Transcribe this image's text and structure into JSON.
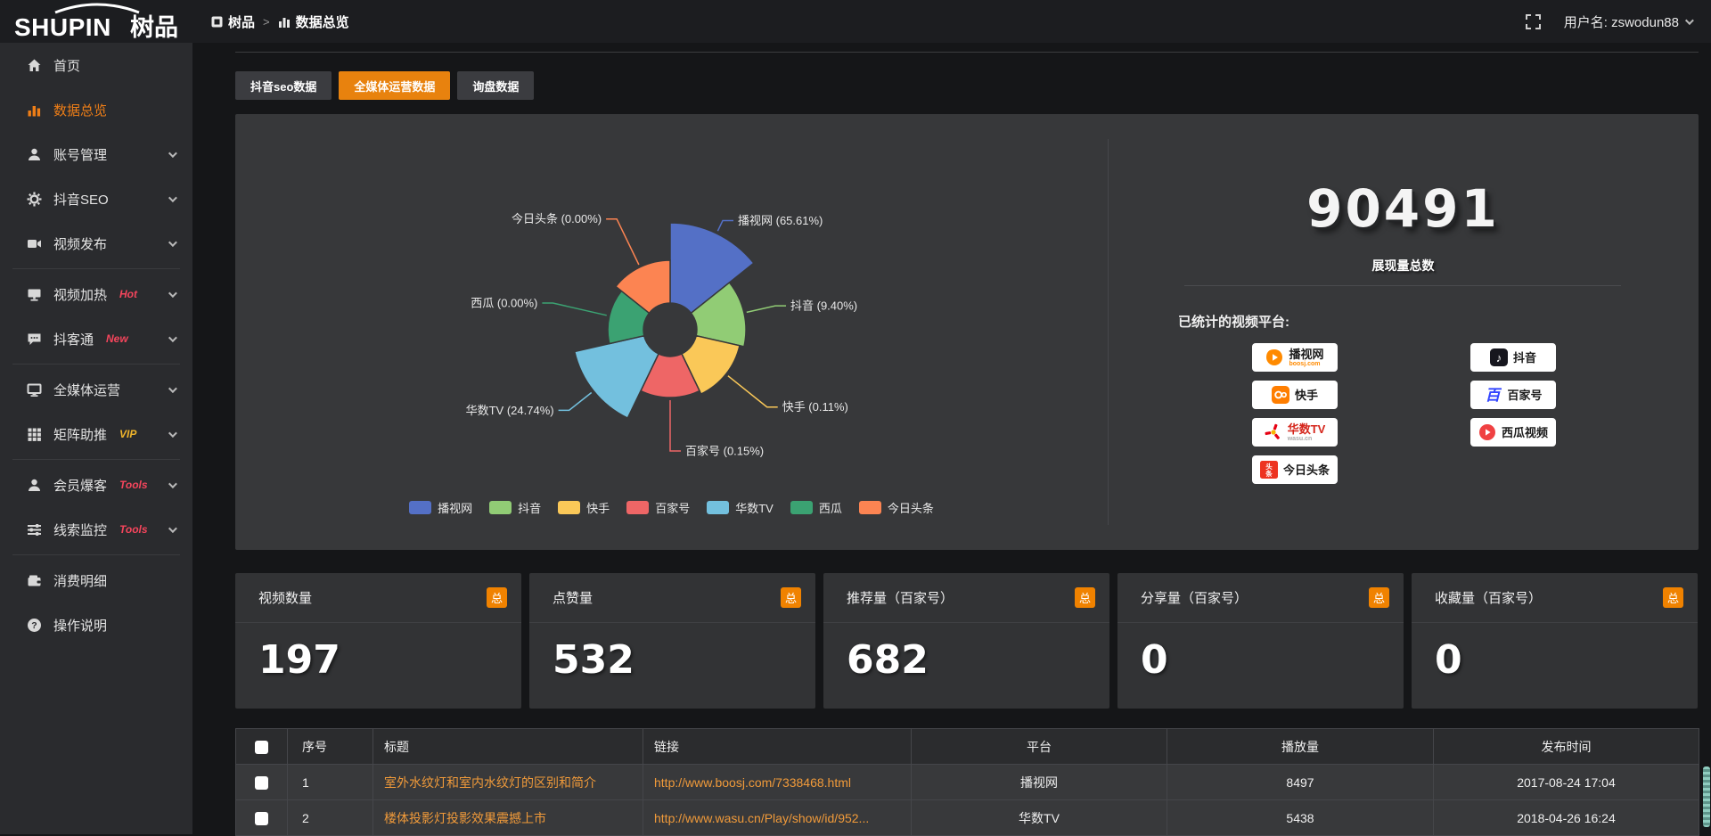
{
  "topbar": {
    "logo_en": "SHUPIN",
    "logo_cn": "树品",
    "breadcrumb": [
      {
        "label": "树品"
      },
      {
        "label": "数据总览"
      }
    ],
    "breadcrumb_sep": ">",
    "username": "用户名: zswodun88"
  },
  "sidebar": {
    "items": [
      {
        "label": "首页",
        "icon": "home",
        "chevron": false
      },
      {
        "label": "数据总览",
        "icon": "chart",
        "active": true,
        "chevron": false
      },
      {
        "label": "账号管理",
        "icon": "user",
        "chevron": true
      },
      {
        "label": "抖音SEO",
        "icon": "gear",
        "chevron": true
      },
      {
        "label": "视频发布",
        "icon": "video",
        "chevron": true
      },
      {
        "divider": true
      },
      {
        "label": "视频加热",
        "icon": "screen",
        "badge": "Hot",
        "badge_color": "#f5455c",
        "chevron": true
      },
      {
        "label": "抖客通",
        "icon": "chat",
        "badge": "New",
        "badge_color": "#f5455c",
        "chevron": true
      },
      {
        "divider": true
      },
      {
        "label": "全媒体运营",
        "icon": "monitor",
        "chevron": true
      },
      {
        "label": "矩阵助推",
        "icon": "grid",
        "badge": "VIP",
        "badge_color": "#f0b52b",
        "chevron": true
      },
      {
        "divider": true
      },
      {
        "label": "会员爆客",
        "icon": "user",
        "badge": "Tools",
        "badge_color": "#f5455c",
        "chevron": true
      },
      {
        "label": "线索监控",
        "icon": "sliders",
        "badge": "Tools",
        "badge_color": "#f5455c",
        "chevron": true
      },
      {
        "divider": true
      },
      {
        "label": "消费明细",
        "icon": "wallet",
        "chevron": false
      },
      {
        "label": "操作说明",
        "icon": "help",
        "chevron": false
      }
    ]
  },
  "tabs": [
    {
      "label": "抖音seo数据",
      "active": false
    },
    {
      "label": "全媒体运营数据",
      "active": true
    },
    {
      "label": "询盘数据",
      "active": false
    }
  ],
  "chart_data": {
    "type": "pie",
    "rose": true,
    "categories": [
      "播视网",
      "抖音",
      "快手",
      "百家号",
      "华数TV",
      "西瓜",
      "今日头条"
    ],
    "values": [
      65.61,
      9.4,
      0.11,
      0.15,
      24.74,
      0.0,
      0.0
    ],
    "labels": [
      "播视网 (65.61%)",
      "抖音 (9.40%)",
      "快手 (0.11%)",
      "百家号 (0.15%)",
      "华数TV (24.74%)",
      "西瓜 (0.00%)",
      "今日头条 (0.00%)"
    ],
    "colors": [
      "#5470c6",
      "#91cc75",
      "#fac858",
      "#ee6666",
      "#73c0de",
      "#3ba272",
      "#fc8452"
    ],
    "display_radii": [
      120,
      85,
      80,
      76,
      110,
      70,
      78
    ],
    "inner_radius": 30,
    "leader_len": [
      16,
      36,
      59,
      60,
      35,
      65,
      60
    ],
    "legend": [
      "播视网",
      "抖音",
      "快手",
      "百家号",
      "华数TV",
      "西瓜",
      "今日头条"
    ],
    "legend_position": "bottom"
  },
  "summary": {
    "total": "90491",
    "total_label": "展现量总数",
    "platforms_label": "已统计的视频平台:",
    "platforms": [
      {
        "name": "播视网",
        "sub": "boosj.com",
        "sub_color": "#ff8a00",
        "style": "boosj"
      },
      {
        "name": "抖音",
        "style": "douyin"
      },
      {
        "name": "快手",
        "style": "kuaishou"
      },
      {
        "name": "百家号",
        "style": "baijiahao"
      },
      {
        "name": "华数TV",
        "sub": "wasu.cn",
        "sub_color": "#aaaaaa",
        "style": "wasu",
        "name_color": "#d5261c"
      },
      {
        "name": "西瓜视频",
        "style": "xigua"
      },
      {
        "name": "今日头条",
        "style": "toutiao"
      }
    ]
  },
  "stat_cards": [
    {
      "title": "视频数量",
      "badge": "总",
      "value": "197"
    },
    {
      "title": "点赞量",
      "badge": "总",
      "value": "532"
    },
    {
      "title": "推荐量（百家号）",
      "badge": "总",
      "value": "682"
    },
    {
      "title": "分享量（百家号）",
      "badge": "总",
      "value": "0"
    },
    {
      "title": "收藏量（百家号）",
      "badge": "总",
      "value": "0"
    }
  ],
  "table": {
    "headers": [
      "序号",
      "标题",
      "链接",
      "平台",
      "播放量",
      "发布时间"
    ],
    "rows": [
      {
        "index": "1",
        "title": "室外水纹灯和室内水纹灯的区别和简介",
        "link": "http://www.boosj.com/7338468.html",
        "platform": "播视网",
        "plays": "8497",
        "time": "2017-08-24 17:04"
      },
      {
        "index": "2",
        "title": "楼体投影灯投影效果震撼上市",
        "link": "http://www.wasu.cn/Play/show/id/952...",
        "platform": "华数TV",
        "plays": "5438",
        "time": "2018-04-26 16:24"
      }
    ]
  },
  "colors": {
    "accent_orange": "#e8820e",
    "badge_orange": "#f08200",
    "link_orange": "#f09a3a",
    "hot_red": "#f5455c",
    "vip_gold": "#f0b52b",
    "panel_bg": "#37383a"
  }
}
